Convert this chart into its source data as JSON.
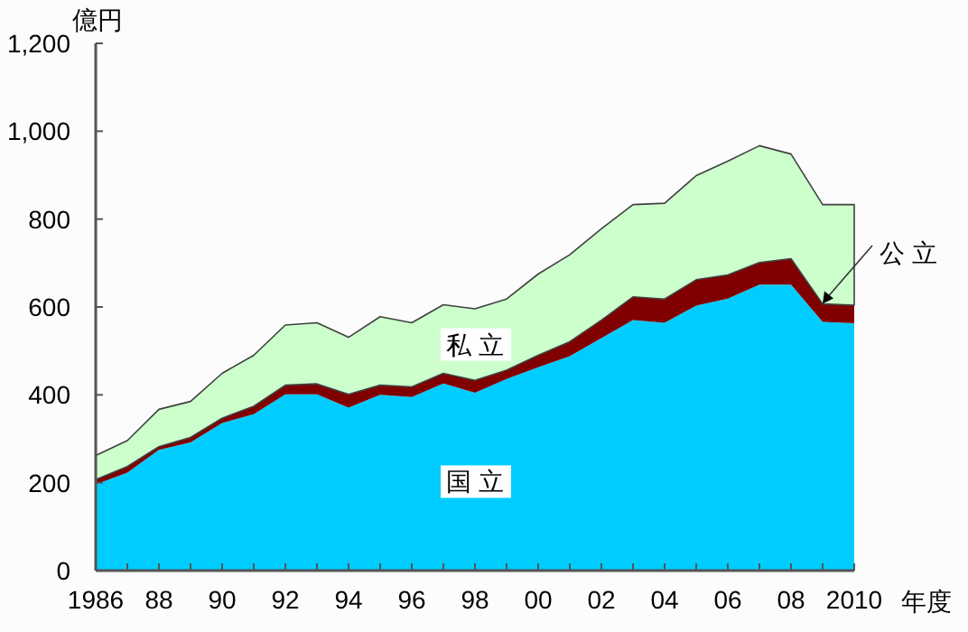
{
  "chart_data": {
    "type": "area",
    "stacked": true,
    "ylabel": "億円",
    "xlabel": "年度",
    "x": [
      1986,
      1987,
      1988,
      1989,
      1990,
      1991,
      1992,
      1993,
      1994,
      1995,
      1996,
      1997,
      1998,
      1999,
      2000,
      2001,
      2002,
      2003,
      2004,
      2005,
      2006,
      2007,
      2008,
      2009,
      2010
    ],
    "series": [
      {
        "name": "国立",
        "color": "#00ccff",
        "values": [
          196,
          223,
          275,
          292,
          336,
          356,
          401,
          401,
          371,
          400,
          395,
          426,
          405,
          436,
          463,
          488,
          529,
          570,
          564,
          603,
          619,
          651,
          651,
          566,
          563
        ]
      },
      {
        "name": "公立",
        "color": "#800000",
        "values": [
          11,
          14,
          7,
          11,
          11,
          18,
          21,
          24,
          30,
          22,
          23,
          23,
          28,
          20,
          27,
          33,
          41,
          53,
          54,
          59,
          54,
          50,
          59,
          41,
          41
        ]
      },
      {
        "name": "私立",
        "color": "#ccffcc",
        "values": [
          55,
          59,
          85,
          82,
          102,
          116,
          137,
          139,
          130,
          156,
          146,
          156,
          163,
          162,
          185,
          198,
          208,
          210,
          218,
          237,
          259,
          266,
          238,
          226,
          229
        ]
      }
    ],
    "xlim": [
      1986,
      2010
    ],
    "xticks": [
      {
        "value": 1986,
        "label": "1986"
      },
      {
        "value": 1987,
        "label": null
      },
      {
        "value": 1988,
        "label": "88"
      },
      {
        "value": 1989,
        "label": null
      },
      {
        "value": 1990,
        "label": "90"
      },
      {
        "value": 1991,
        "label": null
      },
      {
        "value": 1992,
        "label": "92"
      },
      {
        "value": 1993,
        "label": null
      },
      {
        "value": 1994,
        "label": "94"
      },
      {
        "value": 1995,
        "label": null
      },
      {
        "value": 1996,
        "label": "96"
      },
      {
        "value": 1997,
        "label": null
      },
      {
        "value": 1998,
        "label": "98"
      },
      {
        "value": 1999,
        "label": null
      },
      {
        "value": 2000,
        "label": "00"
      },
      {
        "value": 2001,
        "label": null
      },
      {
        "value": 2002,
        "label": "02"
      },
      {
        "value": 2003,
        "label": null
      },
      {
        "value": 2004,
        "label": "04"
      },
      {
        "value": 2005,
        "label": null
      },
      {
        "value": 2006,
        "label": "06"
      },
      {
        "value": 2007,
        "label": null
      },
      {
        "value": 2008,
        "label": "08"
      },
      {
        "value": 2009,
        "label": null
      },
      {
        "value": 2010,
        "label": "2010"
      }
    ],
    "ylim": [
      0,
      1200
    ],
    "yticks": [
      {
        "value": 0,
        "label": "0"
      },
      {
        "value": 200,
        "label": "200"
      },
      {
        "value": 400,
        "label": "400"
      },
      {
        "value": 600,
        "label": "600"
      },
      {
        "value": 800,
        "label": "800"
      },
      {
        "value": 1000,
        "label": "1,000"
      },
      {
        "value": 1200,
        "label": "1,200"
      }
    ],
    "grid": false,
    "legend": false
  }
}
